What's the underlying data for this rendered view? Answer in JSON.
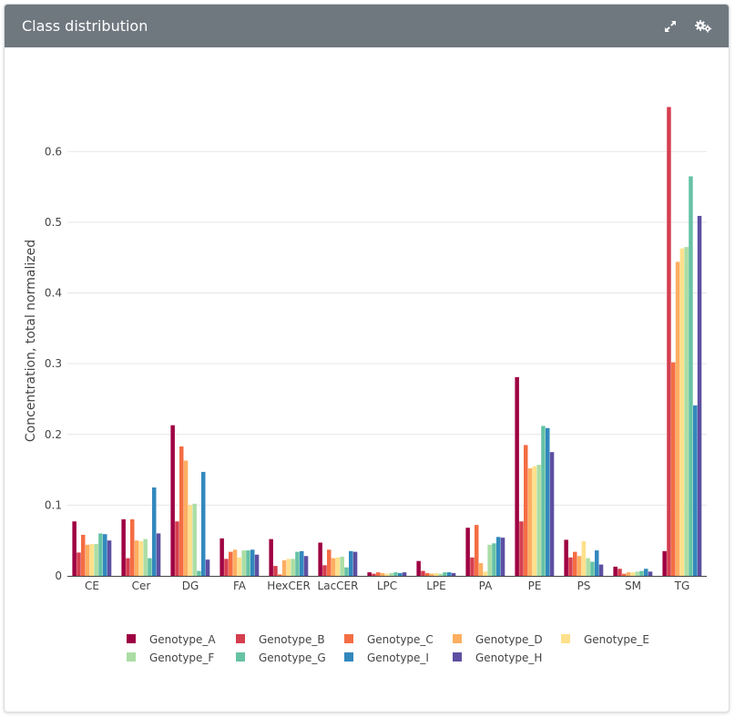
{
  "panel": {
    "title": "Class distribution",
    "expand_icon": "expand-icon",
    "settings_icon": "gears-icon"
  },
  "chart_data": {
    "type": "bar",
    "title": "",
    "xlabel": "",
    "ylabel": "Concentration, total normalized",
    "ylim": [
      0,
      0.67
    ],
    "yticks": [
      0,
      0.1,
      0.2,
      0.3,
      0.4,
      0.5,
      0.6
    ],
    "grid": true,
    "legend_position": "bottom",
    "categories": [
      "CE",
      "Cer",
      "DG",
      "FA",
      "HexCER",
      "LacCER",
      "LPC",
      "LPE",
      "PA",
      "PE",
      "PS",
      "SM",
      "TG"
    ],
    "series": [
      {
        "name": "Genotype_A",
        "color": "#9e0142",
        "values": [
          0.077,
          0.08,
          0.213,
          0.053,
          0.052,
          0.047,
          0.005,
          0.021,
          0.068,
          0.281,
          0.051,
          0.013,
          0.035
        ]
      },
      {
        "name": "Genotype_B",
        "color": "#d53e4f",
        "values": [
          0.033,
          0.025,
          0.077,
          0.024,
          0.014,
          0.015,
          0.003,
          0.007,
          0.026,
          0.077,
          0.026,
          0.01,
          0.663
        ]
      },
      {
        "name": "Genotype_C",
        "color": "#f46d43",
        "values": [
          0.058,
          0.08,
          0.183,
          0.034,
          0.002,
          0.037,
          0.005,
          0.004,
          0.072,
          0.185,
          0.034,
          0.003,
          0.302
        ]
      },
      {
        "name": "Genotype_D",
        "color": "#fdae61",
        "values": [
          0.044,
          0.05,
          0.163,
          0.037,
          0.022,
          0.025,
          0.004,
          0.003,
          0.018,
          0.152,
          0.028,
          0.005,
          0.444
        ]
      },
      {
        "name": "Genotype_E",
        "color": "#fee08b",
        "values": [
          0.045,
          0.049,
          0.1,
          0.026,
          0.024,
          0.026,
          0.003,
          0.004,
          0.006,
          0.155,
          0.049,
          0.005,
          0.463
        ]
      },
      {
        "name": "Genotype_F",
        "color": "#abdda4",
        "values": [
          0.045,
          0.052,
          0.102,
          0.036,
          0.024,
          0.027,
          0.004,
          0.003,
          0.044,
          0.157,
          0.025,
          0.006,
          0.465
        ]
      },
      {
        "name": "Genotype_G",
        "color": "#66c2a5",
        "values": [
          0.06,
          0.025,
          0.007,
          0.036,
          0.034,
          0.012,
          0.005,
          0.005,
          0.046,
          0.212,
          0.02,
          0.007,
          0.565
        ]
      },
      {
        "name": "Genotype_I",
        "color": "#3288bd",
        "values": [
          0.059,
          0.125,
          0.147,
          0.037,
          0.035,
          0.035,
          0.004,
          0.005,
          0.055,
          0.209,
          0.036,
          0.01,
          0.241
        ]
      },
      {
        "name": "Genotype_H",
        "color": "#5e4fa2",
        "values": [
          0.05,
          0.06,
          0.023,
          0.03,
          0.028,
          0.034,
          0.005,
          0.004,
          0.054,
          0.175,
          0.016,
          0.006,
          0.509
        ]
      }
    ]
  }
}
